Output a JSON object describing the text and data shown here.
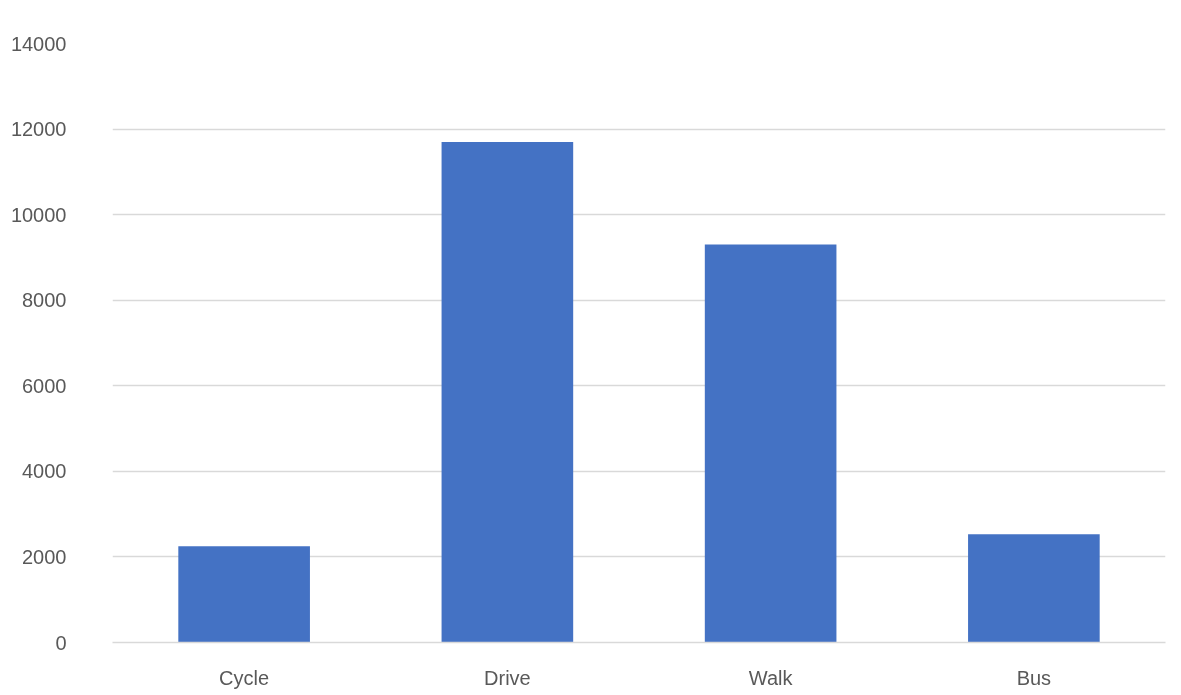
{
  "chart_data": {
    "type": "bar",
    "categories": [
      "Cycle",
      "Drive",
      "Walk",
      "Bus"
    ],
    "values": [
      2250,
      11700,
      9300,
      2530
    ],
    "color": "#4472c4",
    "ylim": [
      0,
      14000
    ],
    "yticks": [
      0,
      2000,
      4000,
      6000,
      8000,
      10000,
      12000,
      14000
    ],
    "grid": "y"
  }
}
